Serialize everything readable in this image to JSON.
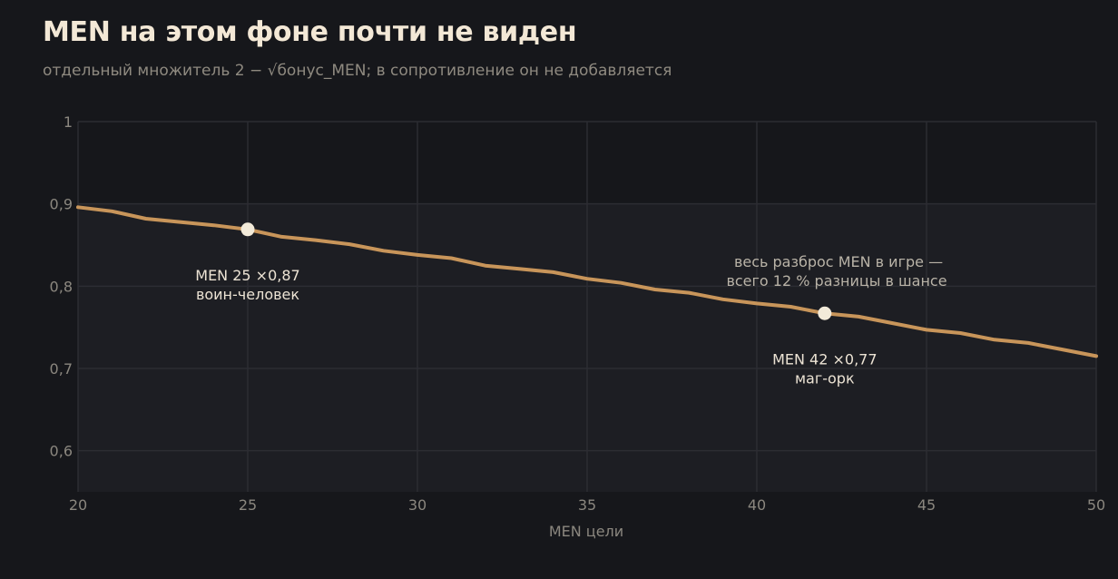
{
  "header": {
    "title": "MEN на этом фоне почти не виден",
    "subtitle": "отдельный множитель 2 − √бонус_MEN; в сопротивление он не добавляется"
  },
  "colors": {
    "background": "#16171b",
    "plot_band": "#1d1e23",
    "grid": "#2c2d33",
    "line": "#c8955a",
    "marker": "#f2ead9"
  },
  "chart_data": {
    "type": "line",
    "title": "MEN на этом фоне почти не виден",
    "subtitle": "отдельный множитель 2 − √бонус_MEN; в сопротивление он не добавляется",
    "xlabel": "MEN цели",
    "ylabel": "",
    "xlim": [
      20,
      50
    ],
    "ylim": [
      0.55,
      1.0
    ],
    "band_range": [
      0.55,
      0.9
    ],
    "x_ticks": [
      20,
      25,
      30,
      35,
      40,
      45,
      50
    ],
    "x_tick_labels": [
      "20",
      "25",
      "30",
      "35",
      "40",
      "45",
      "50"
    ],
    "y_ticks": [
      0.6,
      0.7,
      0.8,
      0.9,
      1.0
    ],
    "y_tick_labels": [
      "0,6",
      "0,7",
      "0,8",
      "0,9",
      "1"
    ],
    "grid": true,
    "series": [
      {
        "x": [
          20,
          21,
          22,
          23,
          24,
          25,
          26,
          27,
          28,
          29,
          30,
          31,
          32,
          33,
          34,
          35,
          36,
          37,
          38,
          39,
          40,
          41,
          42,
          43,
          44,
          45,
          46,
          47,
          48,
          49,
          50
        ],
        "y": [
          0.896,
          0.891,
          0.882,
          0.878,
          0.874,
          0.869,
          0.86,
          0.856,
          0.851,
          0.843,
          0.838,
          0.834,
          0.825,
          0.821,
          0.817,
          0.809,
          0.804,
          0.796,
          0.792,
          0.784,
          0.779,
          0.775,
          0.767,
          0.763,
          0.755,
          0.747,
          0.743,
          0.735,
          0.731,
          0.723,
          0.715
        ]
      }
    ],
    "highlights": [
      {
        "x": 25,
        "y": 0.869,
        "line1": "MEN 25  ×0,87",
        "line2": "воин-человек"
      },
      {
        "x": 42,
        "y": 0.767,
        "line1": "MEN 42  ×0,77",
        "line2": "маг-орк"
      }
    ],
    "annotation": {
      "line1": "весь разброс MEN в игре —",
      "line2": "всего 12 % разницы в шансе"
    }
  }
}
